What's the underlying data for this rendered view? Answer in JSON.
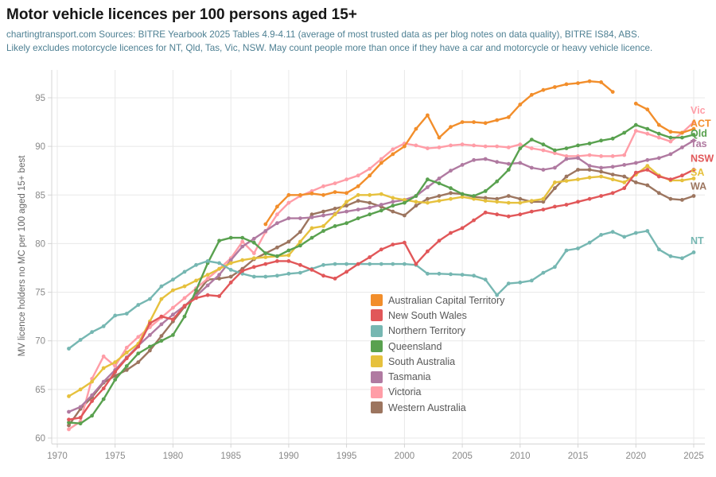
{
  "header": {
    "title": "Motor vehicle licences per 100 persons aged 15+",
    "subtitle_line1": "chartingtransport.com  Sources: BITRE Yearbook 2025 Tables 4.9-4.11 (average of most trusted data as per blog notes on data quality), BITRE IS84, ABS.",
    "subtitle_line2": "Likely excludes motorcycle licences for NT, Qld, Tas, Vic, NSW. May count people more than once if they have a car and motorcycle or heavy vehicle licence."
  },
  "y_axis": {
    "title": "MV licence holders no MC per 100 aged 15+ best"
  },
  "chart_data": {
    "type": "line",
    "title": "Motor vehicle licences per 100 persons aged 15+",
    "xlabel": "",
    "ylabel": "MV licence holders no MC per 100 aged 15+ best",
    "xlim": [
      1970,
      2025
    ],
    "ylim": [
      60,
      95
    ],
    "grid": true,
    "legend_position": "inside-bottom-center",
    "x_ticks": [
      1970,
      1975,
      1980,
      1985,
      1990,
      1995,
      2000,
      2005,
      2010,
      2015,
      2020,
      2025
    ],
    "y_ticks": [
      60,
      65,
      70,
      75,
      80,
      85,
      90,
      95
    ],
    "years": [
      1971,
      1972,
      1973,
      1974,
      1975,
      1976,
      1977,
      1978,
      1979,
      1980,
      1981,
      1982,
      1983,
      1984,
      1985,
      1986,
      1987,
      1988,
      1989,
      1990,
      1991,
      1992,
      1993,
      1994,
      1995,
      1996,
      1997,
      1998,
      1999,
      2000,
      2001,
      2002,
      2003,
      2004,
      2005,
      2006,
      2007,
      2008,
      2009,
      2010,
      2011,
      2012,
      2013,
      2014,
      2015,
      2016,
      2017,
      2018,
      2019,
      2020,
      2021,
      2022,
      2023,
      2024,
      2025
    ],
    "series": [
      {
        "name": "Australian Capital Territory",
        "abbrev": "ACT",
        "color": "#f28e2b",
        "values": [
          null,
          null,
          null,
          null,
          null,
          null,
          null,
          null,
          null,
          null,
          null,
          null,
          null,
          null,
          null,
          null,
          null,
          82.0,
          83.8,
          85.0,
          85.0,
          85.15,
          85.0,
          85.3,
          85.2,
          85.9,
          87.0,
          88.3,
          89.2,
          90.0,
          91.8,
          93.2,
          90.9,
          92.0,
          92.5,
          92.5,
          92.4,
          92.7,
          93.0,
          94.3,
          95.3,
          95.8,
          96.1,
          96.4,
          96.5,
          96.7,
          96.6,
          95.6,
          null,
          94.4,
          93.8,
          92.2,
          91.5,
          91.4,
          91.8
        ]
      },
      {
        "name": "New South Wales",
        "abbrev": "NSW",
        "color": "#e15759",
        "values": [
          61.9,
          62.1,
          63.8,
          65.1,
          66.8,
          68.2,
          69.4,
          71.8,
          72.5,
          72.2,
          73.6,
          74.4,
          74.7,
          74.6,
          76.0,
          77.2,
          77.6,
          77.9,
          78.2,
          78.2,
          77.8,
          77.3,
          76.7,
          76.4,
          77.1,
          77.9,
          78.6,
          79.4,
          79.9,
          80.1,
          77.9,
          79.2,
          80.3,
          81.1,
          81.6,
          82.4,
          83.2,
          83.0,
          82.8,
          83.0,
          83.3,
          83.5,
          83.8,
          84.0,
          84.3,
          84.6,
          84.9,
          85.2,
          85.7,
          87.3,
          87.6,
          86.9,
          86.6,
          87.0,
          87.6
        ]
      },
      {
        "name": "Northern Territory",
        "abbrev": "NT",
        "color": "#76b7b2",
        "values": [
          69.2,
          70.1,
          70.9,
          71.5,
          72.6,
          72.8,
          73.7,
          74.3,
          75.6,
          76.3,
          77.1,
          77.8,
          78.2,
          78.0,
          77.3,
          76.9,
          76.6,
          76.6,
          76.7,
          76.9,
          77.0,
          77.4,
          77.8,
          77.9,
          77.9,
          77.9,
          77.9,
          77.9,
          77.9,
          77.9,
          77.8,
          76.9,
          76.9,
          76.85,
          76.8,
          76.7,
          76.3,
          74.7,
          75.9,
          76.0,
          76.2,
          77.0,
          77.6,
          79.3,
          79.5,
          80.1,
          80.9,
          81.2,
          80.7,
          81.1,
          81.3,
          79.4,
          78.7,
          78.5,
          79.1
        ]
      },
      {
        "name": "Queensland",
        "abbrev": "Qld",
        "color": "#59a14f",
        "values": [
          61.6,
          61.5,
          62.3,
          64.0,
          66.0,
          67.4,
          68.7,
          69.4,
          70.0,
          70.6,
          72.5,
          75.2,
          78.0,
          80.3,
          80.6,
          80.6,
          80.1,
          79.0,
          78.7,
          79.3,
          79.8,
          80.6,
          81.3,
          81.8,
          82.1,
          82.6,
          83.0,
          83.4,
          83.9,
          84.2,
          84.9,
          86.6,
          86.2,
          85.7,
          85.1,
          84.9,
          85.4,
          86.4,
          87.6,
          89.8,
          90.7,
          90.2,
          89.6,
          89.8,
          90.1,
          90.3,
          90.6,
          90.8,
          91.4,
          92.2,
          91.8,
          91.3,
          90.9,
          90.9,
          91.2
        ]
      },
      {
        "name": "South Australia",
        "abbrev": "SA",
        "color": "#e6c13d",
        "values": [
          64.3,
          65.0,
          65.8,
          67.2,
          67.8,
          68.8,
          69.7,
          72.0,
          74.3,
          75.2,
          75.6,
          76.2,
          76.8,
          77.4,
          78.0,
          78.3,
          78.5,
          78.6,
          78.7,
          78.8,
          80.2,
          81.6,
          81.8,
          83.0,
          84.3,
          85.0,
          85.0,
          85.1,
          84.7,
          84.5,
          84.3,
          84.2,
          84.4,
          84.6,
          84.8,
          84.6,
          84.4,
          84.3,
          84.2,
          84.2,
          84.4,
          84.6,
          86.3,
          86.45,
          86.6,
          86.8,
          86.9,
          86.6,
          86.3,
          87.1,
          88.0,
          87.0,
          86.5,
          86.5,
          86.7
        ]
      },
      {
        "name": "Tasmania",
        "abbrev": "Tas",
        "color": "#b07aa1",
        "values": [
          62.7,
          63.2,
          64.4,
          65.8,
          67.0,
          68.3,
          69.5,
          70.6,
          71.7,
          72.7,
          73.6,
          74.6,
          75.7,
          76.8,
          78.3,
          79.7,
          80.5,
          81.3,
          82.1,
          82.6,
          82.6,
          82.7,
          82.9,
          83.1,
          83.3,
          83.5,
          83.7,
          84.0,
          84.3,
          84.5,
          84.9,
          85.8,
          86.7,
          87.5,
          88.1,
          88.6,
          88.7,
          88.4,
          88.2,
          88.3,
          87.8,
          87.6,
          87.8,
          88.7,
          88.8,
          88.0,
          87.8,
          87.9,
          88.1,
          88.3,
          88.6,
          88.8,
          89.2,
          89.9,
          90.6
        ]
      },
      {
        "name": "Victoria",
        "abbrev": "Vic",
        "color": "#ff9da7",
        "values": [
          60.9,
          61.7,
          66.1,
          68.4,
          67.4,
          69.3,
          70.4,
          71.4,
          72.4,
          73.4,
          74.4,
          75.4,
          76.4,
          77.4,
          78.5,
          80.2,
          79.0,
          81.2,
          83.0,
          84.2,
          84.9,
          85.4,
          85.9,
          86.2,
          86.6,
          87.0,
          87.7,
          88.7,
          89.7,
          90.3,
          90.1,
          89.8,
          89.9,
          90.1,
          90.2,
          90.1,
          90.0,
          90.0,
          89.9,
          90.2,
          89.8,
          89.6,
          89.3,
          89.0,
          89.0,
          89.1,
          89.0,
          89.0,
          89.1,
          91.6,
          91.3,
          90.9,
          90.5,
          91.4,
          92.5
        ]
      },
      {
        "name": "Western Australia",
        "abbrev": "WA",
        "color": "#9c755f",
        "values": [
          61.3,
          63.0,
          64.2,
          65.7,
          66.4,
          67.0,
          67.8,
          69.0,
          70.5,
          72.0,
          73.5,
          74.8,
          76.3,
          76.4,
          76.6,
          77.4,
          78.4,
          79.0,
          79.6,
          80.2,
          81.2,
          83.0,
          83.3,
          83.6,
          83.9,
          84.4,
          84.2,
          83.8,
          83.3,
          82.9,
          83.9,
          84.6,
          84.9,
          85.2,
          85.1,
          84.8,
          84.7,
          84.6,
          84.9,
          84.6,
          84.3,
          84.3,
          85.7,
          86.9,
          87.6,
          87.6,
          87.4,
          87.1,
          86.9,
          86.3,
          86.0,
          85.2,
          84.6,
          84.5,
          84.9
        ]
      }
    ],
    "end_labels": [
      {
        "text": "Vic",
        "color": "#ff9da7",
        "at": 93.7
      },
      {
        "text": "ACT",
        "color": "#f28e2b",
        "at": 92.35
      },
      {
        "text": "Qld",
        "color": "#59a14f",
        "at": 91.3
      },
      {
        "text": "Tas",
        "color": "#b07aa1",
        "at": 90.25
      },
      {
        "text": "NSW",
        "color": "#e15759",
        "at": 88.75
      },
      {
        "text": "SA",
        "color": "#e6c13d",
        "at": 87.3
      },
      {
        "text": "WA",
        "color": "#9c755f",
        "at": 85.9
      },
      {
        "text": "NT",
        "color": "#76b7b2",
        "at": 80.3
      }
    ]
  }
}
